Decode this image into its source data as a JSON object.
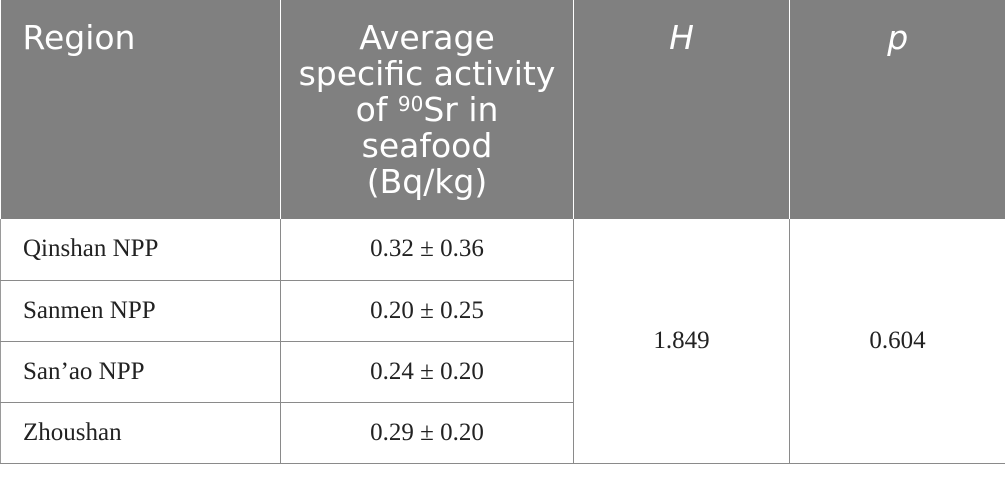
{
  "table": {
    "headers": {
      "region": "Region",
      "activity_prefix": "Average specific activity of ",
      "activity_sup": "90",
      "activity_suffix": "Sr in seafood (Bq/kg)",
      "h": "H",
      "p": "p"
    },
    "rows": [
      {
        "region": "Qinshan NPP",
        "activity": "0.32 ± 0.36"
      },
      {
        "region": "Sanmen NPP",
        "activity": "0.20 ± 0.25"
      },
      {
        "region": "San’ao NPP",
        "activity": "0.24 ± 0.20"
      },
      {
        "region": "Zhoushan",
        "activity": "0.29 ± 0.20"
      }
    ],
    "h_value": "1.849",
    "p_value": "0.604"
  },
  "colors": {
    "header_bg": "#808080",
    "header_text": "#ffffff",
    "border": "#8a8a8a"
  }
}
